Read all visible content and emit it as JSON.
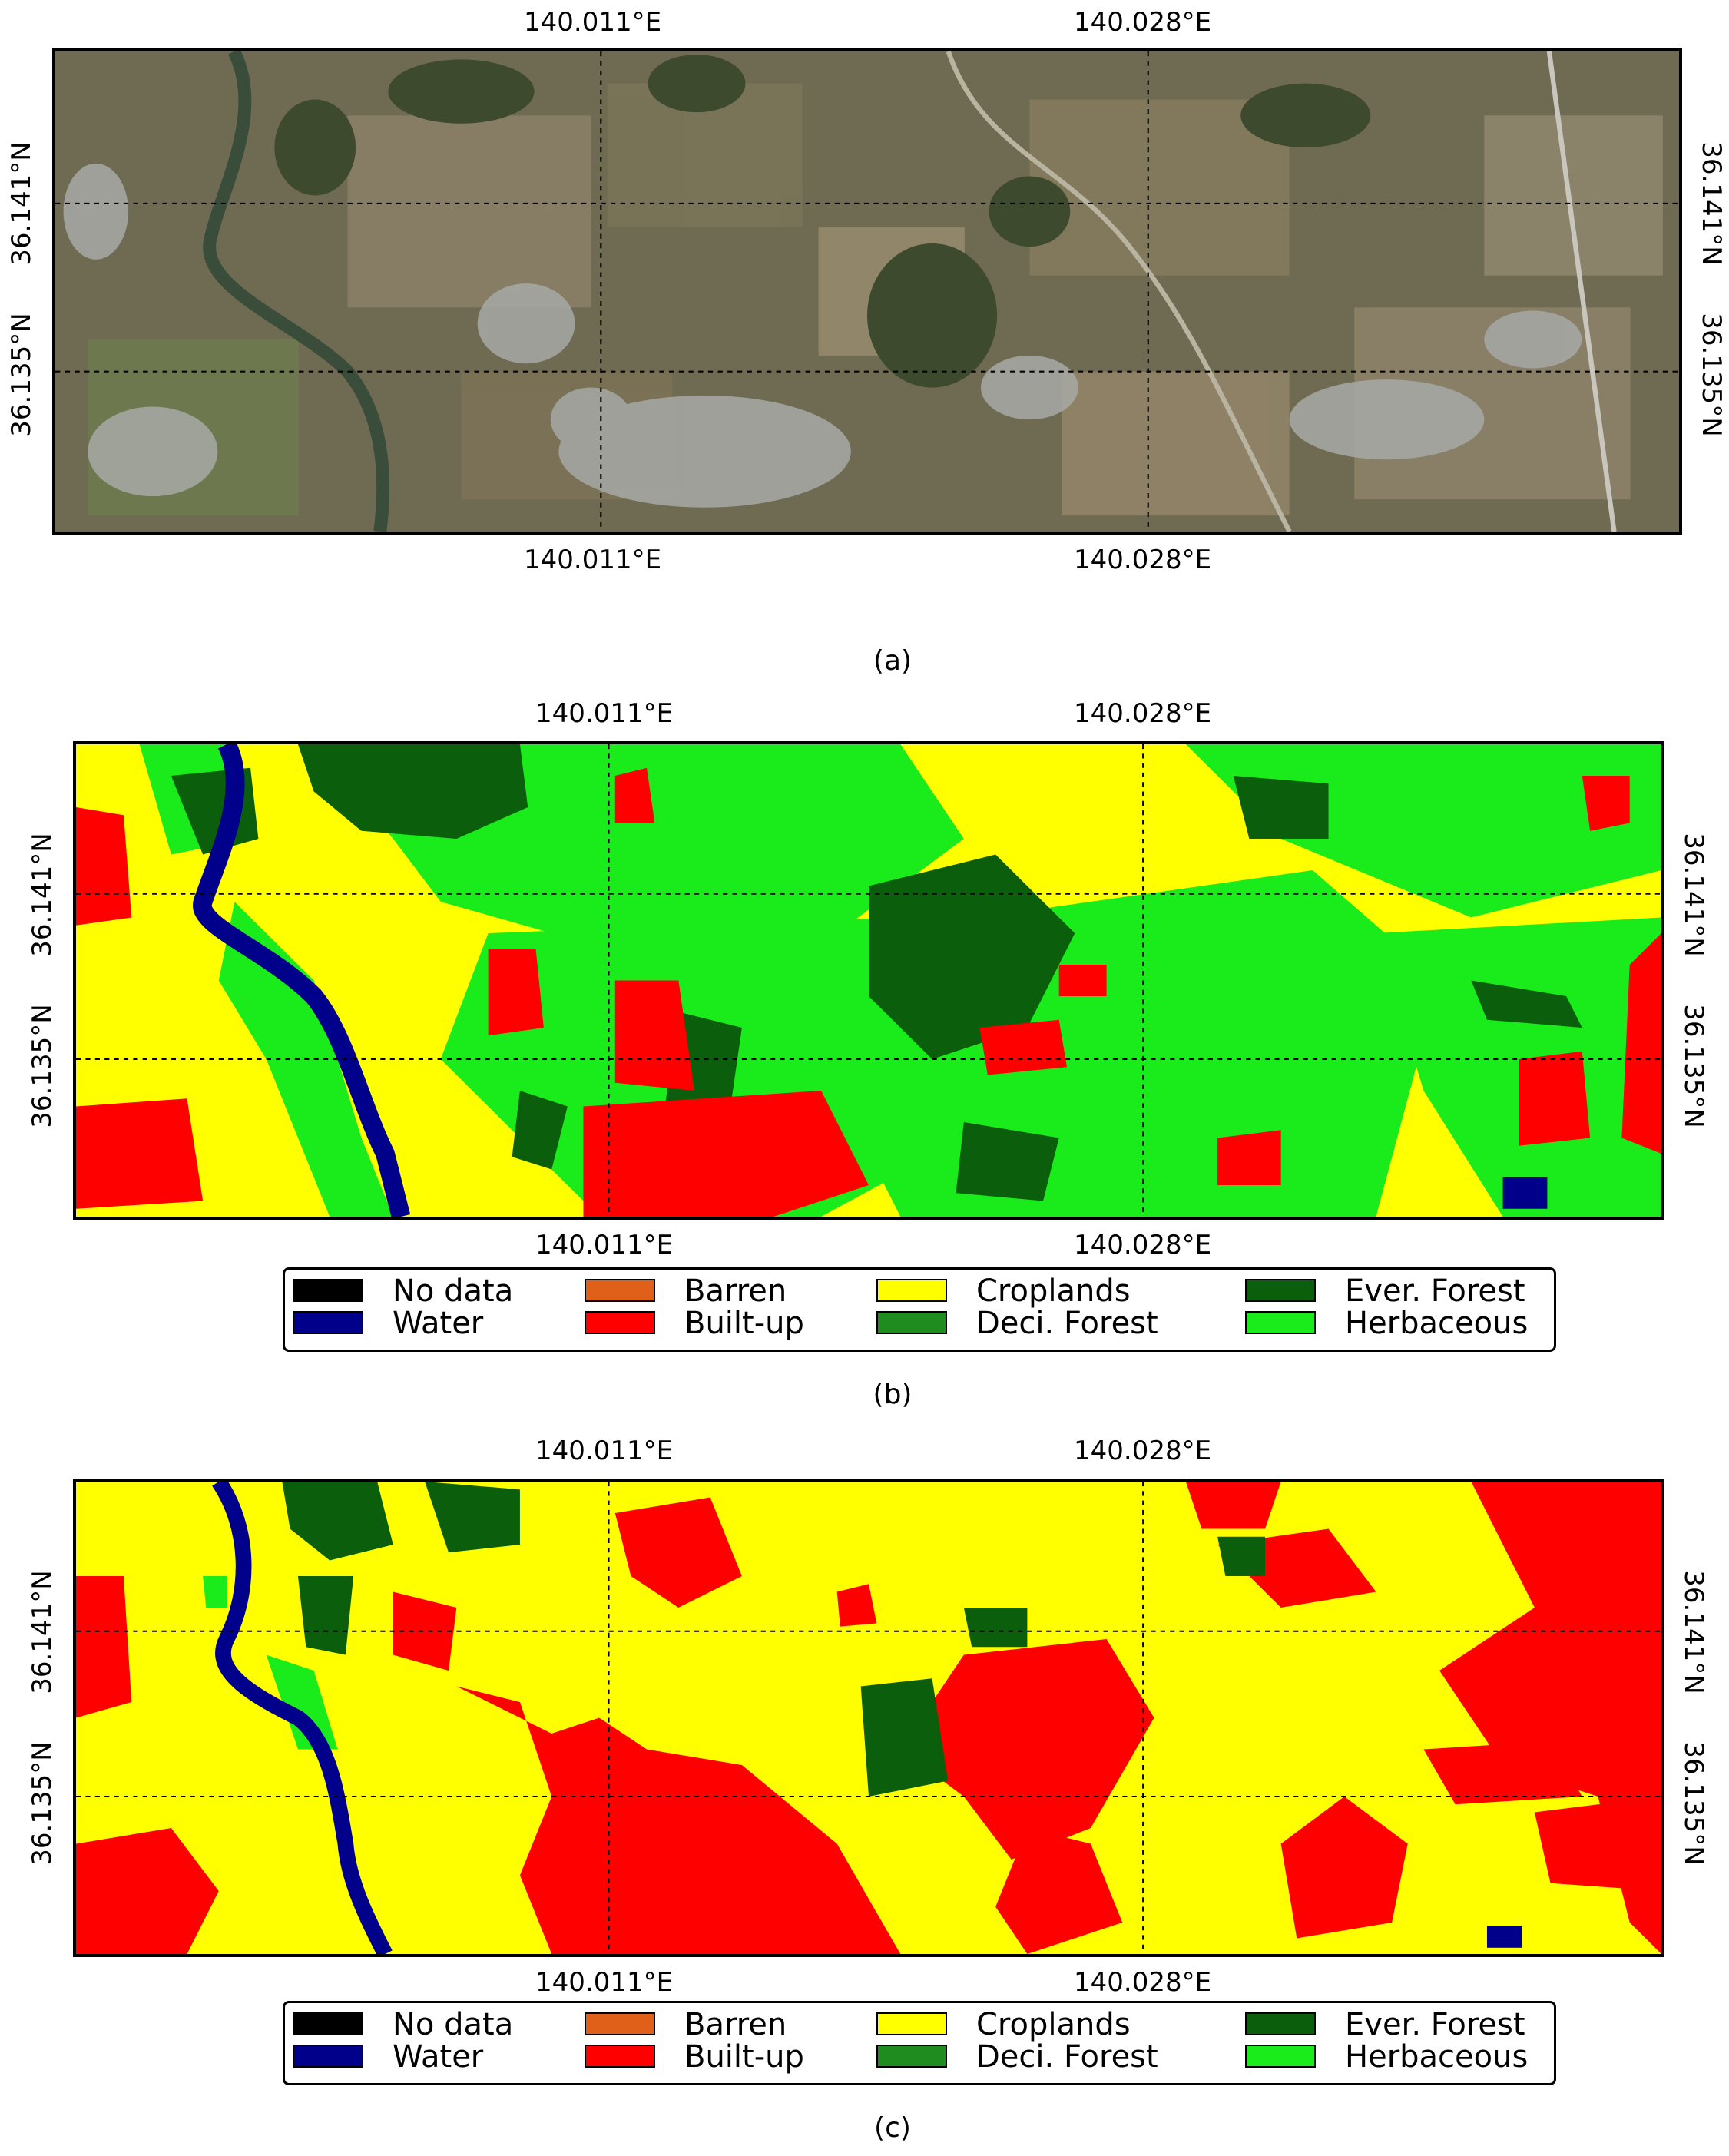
{
  "axes": {
    "lon_ticks": [
      "140.011°E",
      "140.028°E"
    ],
    "lat_ticks": [
      "36.141°N",
      "36.135°N"
    ]
  },
  "panels": [
    {
      "id": "a",
      "caption": "(a)",
      "kind": "satellite"
    },
    {
      "id": "b",
      "caption": "(b)",
      "kind": "landcover"
    },
    {
      "id": "c",
      "caption": "(c)",
      "kind": "landcover"
    }
  ],
  "legend": [
    {
      "label": "No data",
      "color": "#000000"
    },
    {
      "label": "Water",
      "color": "#00008b"
    },
    {
      "label": "Barren",
      "color": "#e0601a"
    },
    {
      "label": "Built-up",
      "color": "#ff0000"
    },
    {
      "label": "Croplands",
      "color": "#ffff00"
    },
    {
      "label": "Deci. Forest",
      "color": "#1e8c1e"
    },
    {
      "label": "Ever. Forest",
      "color": "#0b5e0b"
    },
    {
      "label": "Herbaceous",
      "color": "#1aeb1a"
    }
  ]
}
